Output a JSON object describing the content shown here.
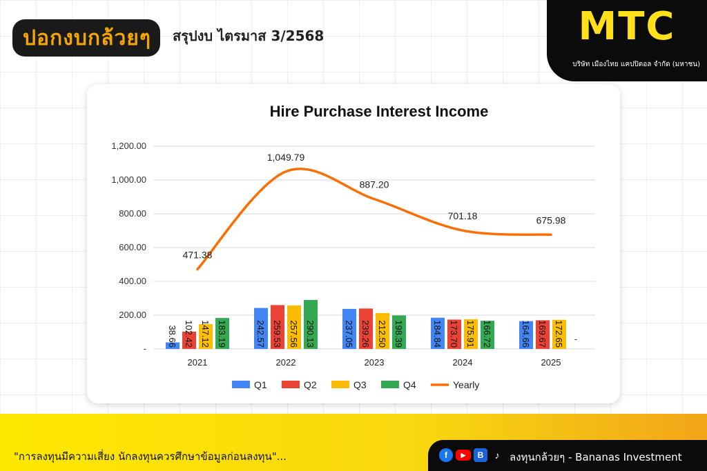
{
  "header": {
    "logo_text": "ปอกงบกล้วยๆ",
    "title": "สรุปงบ ไตรมาส 3/2568"
  },
  "company": {
    "logo": "MTC",
    "name": "บริษัท เมืองไทย แคปปิตอล จำกัด (มหาชน)"
  },
  "footer": {
    "note": "\"การลงทุนมีความเสี่ยง นักลงทุนควรศึกษาข้อมูลก่อนลงทุน\"...",
    "brand": "ลงทุนกล้วยๆ - Bananas Investment",
    "icons": [
      "facebook-icon",
      "youtube-icon",
      "blockdit-icon",
      "tiktok-icon"
    ]
  },
  "colors": {
    "Q1": "#4285f4",
    "Q2": "#ea4335",
    "Q3": "#fbbc04",
    "Q4": "#34a853",
    "Yearly": "#ff6d01",
    "brand_yellow": "#ffe01a"
  },
  "chart_data": {
    "type": "bar",
    "title": "Hire Purchase Interest Income",
    "categories": [
      "2021",
      "2022",
      "2023",
      "2024",
      "2025"
    ],
    "series": [
      {
        "name": "Q1",
        "values": [
          38.66,
          242.57,
          237.05,
          184.84,
          164.66
        ],
        "labels": [
          "38.66",
          "242.57",
          "237.05",
          "184.84",
          "164.66"
        ]
      },
      {
        "name": "Q2",
        "values": [
          102.42,
          259.53,
          239.26,
          173.7,
          169.67
        ],
        "labels": [
          "102.42",
          "259.53",
          "239.26",
          "173.70",
          "169.67"
        ]
      },
      {
        "name": "Q3",
        "values": [
          147.12,
          257.56,
          212.5,
          175.91,
          172.65
        ],
        "labels": [
          "147.12",
          "257.56",
          "212.50",
          "175.91",
          "172.65"
        ]
      },
      {
        "name": "Q4",
        "values": [
          183.19,
          290.13,
          198.39,
          166.72,
          null
        ],
        "labels": [
          "183.19",
          "290.13",
          "198.39",
          "166.72",
          "-"
        ]
      },
      {
        "name": "Yearly",
        "type": "line",
        "values": [
          471.38,
          1049.79,
          887.2,
          701.18,
          675.98
        ],
        "labels": [
          "471.38",
          "1,049.79",
          "887.20",
          "701.18",
          "675.98"
        ]
      }
    ],
    "ylim": [
      0,
      1200
    ],
    "yticks": [
      0,
      200,
      400,
      600,
      800,
      1000,
      1200
    ],
    "ytick_labels": [
      "-",
      "200.00",
      "400.00",
      "600.00",
      "800.00",
      "1,000.00",
      "1,200.00"
    ],
    "grid": true,
    "legend": "bottom"
  }
}
